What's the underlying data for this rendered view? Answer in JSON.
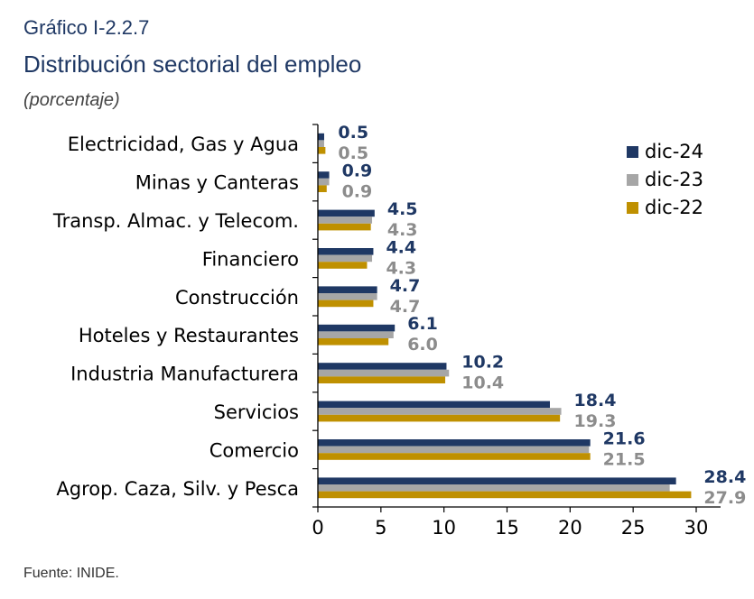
{
  "header": {
    "figure_label": "Gráfico I-2.2.7",
    "title": "Distribución sectorial del empleo",
    "unit": "(porcentaje)"
  },
  "source": "Fuente: INIDE.",
  "chart_data": {
    "type": "bar",
    "orientation": "horizontal",
    "title": "Distribución sectorial del empleo",
    "subtitle": "(porcentaje)",
    "categories": [
      "Electricidad, Gas y Agua",
      "Minas y Canteras",
      "Transp. Almac. y Telecom.",
      "Financiero",
      "Construcción",
      "Hoteles y Restaurantes",
      "Industria Manufacturera",
      "Servicios",
      "Comercio",
      "Agrop. Caza, Silv. y Pesca"
    ],
    "series": [
      {
        "name": "dic-24",
        "color": "#1f3864",
        "values": [
          0.5,
          0.9,
          4.5,
          4.4,
          4.7,
          6.1,
          10.2,
          18.4,
          21.6,
          28.4
        ],
        "labels": [
          "0.5",
          "0.9",
          "4.5",
          "4.4",
          "4.7",
          "6.1",
          "10.2",
          "18.4",
          "21.6",
          "28.4"
        ]
      },
      {
        "name": "dic-23",
        "color": "#a6a6a6",
        "values": [
          0.5,
          0.9,
          4.3,
          4.3,
          4.7,
          6.0,
          10.4,
          19.3,
          21.5,
          27.9
        ],
        "labels": [
          "0.5",
          "0.9",
          "4.3",
          "4.3",
          "4.7",
          "6.0",
          "10.4",
          "19.3",
          "21.5",
          "27.9"
        ]
      },
      {
        "name": "dic-22",
        "color": "#bf9000",
        "values": [
          0.6,
          0.7,
          4.2,
          3.9,
          4.4,
          5.6,
          10.1,
          19.2,
          21.6,
          29.6
        ]
      }
    ],
    "label_colors": [
      "#1f3864",
      "#8c8c8c"
    ],
    "xlim": [
      0,
      30
    ],
    "xticks": [
      "0",
      "5",
      "10",
      "15",
      "20",
      "25",
      "30"
    ],
    "grid": false,
    "legend": "top-right"
  }
}
